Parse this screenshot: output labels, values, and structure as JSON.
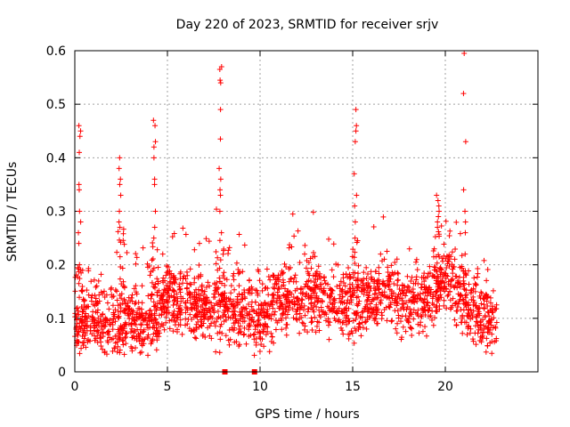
{
  "chart_data": {
    "type": "scatter",
    "title": "Day 220 of 2023, SRMTID for receiver srjv",
    "xlabel": "GPS time / hours",
    "ylabel": "SRMTID / TECUs",
    "xlim": [
      0,
      25
    ],
    "ylim": [
      0,
      0.6
    ],
    "x_ticks": [
      0,
      5,
      10,
      15,
      20
    ],
    "x_tick_labels": [
      "0",
      "5",
      "10",
      "15",
      "20"
    ],
    "y_ticks": [
      0,
      0.1,
      0.2,
      0.3,
      0.4,
      0.5,
      0.6
    ],
    "y_tick_labels": [
      "0",
      "0.1",
      "0.2",
      "0.3",
      "0.4",
      "0.5",
      "0.6"
    ],
    "grid": true,
    "marker": "plus",
    "color": "#ff0000",
    "zero_markers": [
      8.1,
      9.7
    ],
    "series": [
      {
        "name": "srjv",
        "baseline": [
          [
            0,
            0.09
          ],
          [
            1,
            0.1
          ],
          [
            2,
            0.08
          ],
          [
            3,
            0.1
          ],
          [
            4,
            0.09
          ],
          [
            5,
            0.14
          ],
          [
            6,
            0.12
          ],
          [
            7,
            0.12
          ],
          [
            8,
            0.12
          ],
          [
            9,
            0.11
          ],
          [
            10,
            0.1
          ],
          [
            11,
            0.13
          ],
          [
            12,
            0.14
          ],
          [
            13,
            0.14
          ],
          [
            14,
            0.13
          ],
          [
            15,
            0.13
          ],
          [
            16,
            0.14
          ],
          [
            17,
            0.15
          ],
          [
            18,
            0.12
          ],
          [
            19,
            0.14
          ],
          [
            20,
            0.18
          ],
          [
            21,
            0.12
          ],
          [
            22,
            0.1
          ],
          [
            22.8,
            0.09
          ]
        ],
        "spikes": [
          {
            "x": 0.25,
            "y": [
              0.46,
              0.45,
              0.44,
              0.41,
              0.35,
              0.34,
              0.3,
              0.28,
              0.26,
              0.24,
              0.2
            ]
          },
          {
            "x": 2.45,
            "y": [
              0.4,
              0.38,
              0.36,
              0.35,
              0.33,
              0.3,
              0.28,
              0.27
            ]
          },
          {
            "x": 4.3,
            "y": [
              0.47,
              0.46,
              0.43,
              0.42,
              0.4,
              0.36,
              0.35,
              0.3,
              0.27,
              0.25
            ]
          },
          {
            "x": 7.85,
            "y": [
              0.57,
              0.565,
              0.545,
              0.54,
              0.49,
              0.435,
              0.38,
              0.36,
              0.34,
              0.33,
              0.3,
              0.26
            ]
          },
          {
            "x": 15.15,
            "y": [
              0.49,
              0.46,
              0.45,
              0.43,
              0.37,
              0.33,
              0.31,
              0.28,
              0.25
            ]
          },
          {
            "x": 19.6,
            "y": [
              0.33,
              0.32,
              0.31,
              0.3,
              0.29,
              0.28,
              0.27
            ]
          },
          {
            "x": 21.05,
            "y": [
              0.595,
              0.52,
              0.43,
              0.34,
              0.3,
              0.28,
              0.26,
              0.22
            ]
          }
        ]
      }
    ]
  }
}
